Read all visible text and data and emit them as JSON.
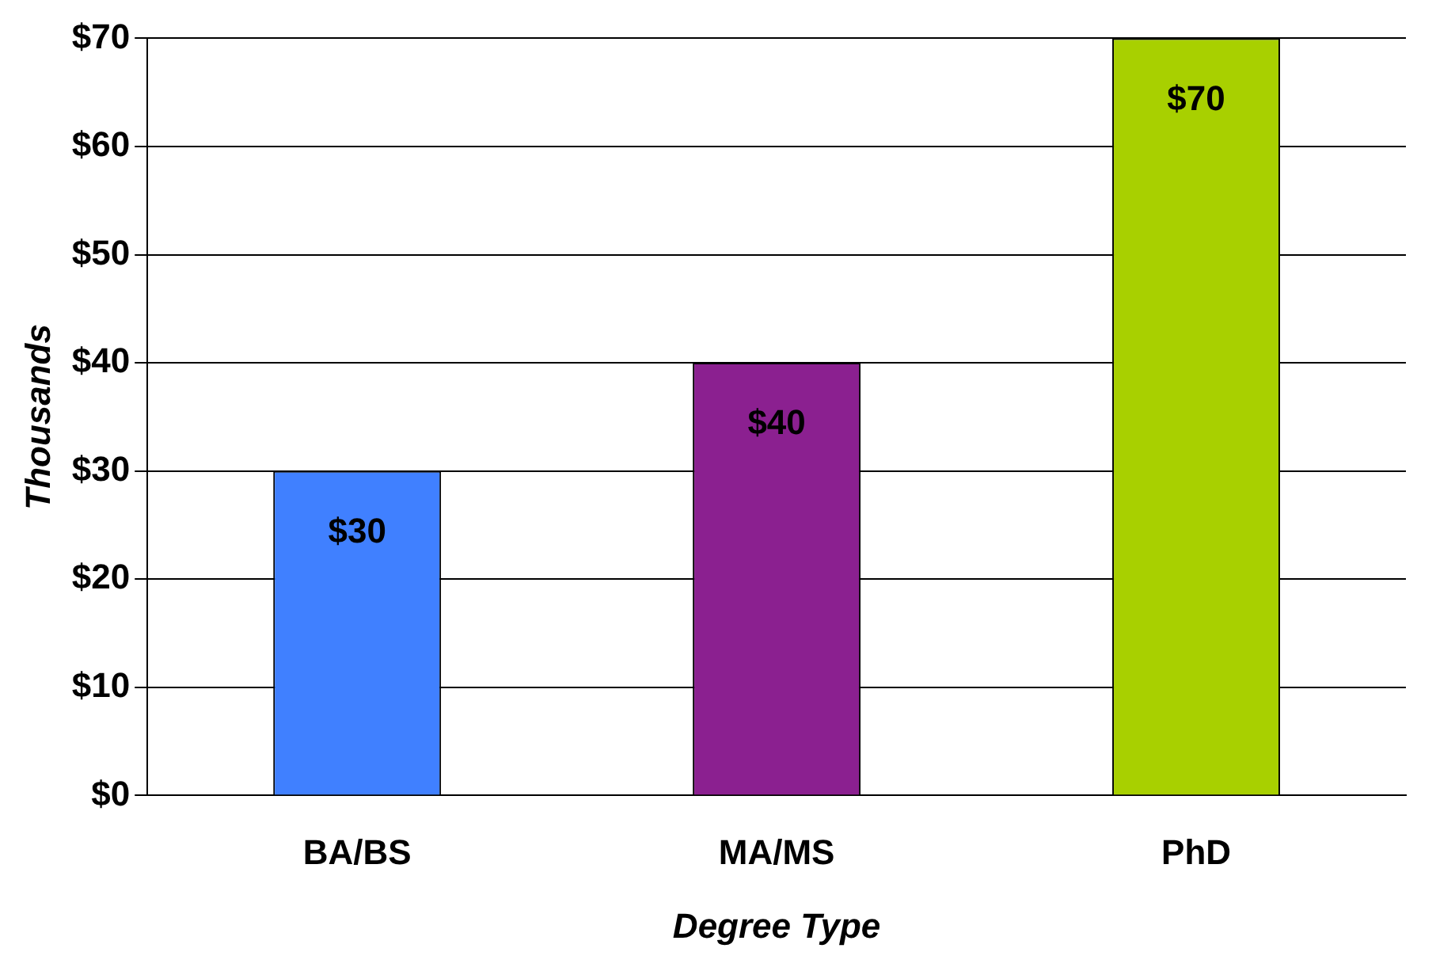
{
  "chart_data": {
    "type": "bar",
    "xlabel": "Degree Type",
    "ylabel": "Thousands",
    "categories": [
      "BA/BS",
      "MA/MS",
      "PhD"
    ],
    "values": [
      30,
      40,
      70
    ],
    "colors": [
      "#4080ff",
      "#8b2090",
      "#a8d000"
    ],
    "value_labels": [
      "$30",
      "$40",
      "$70"
    ],
    "ylim": [
      0,
      70
    ],
    "yticks": [
      {
        "value": 0,
        "label": "$0"
      },
      {
        "value": 10,
        "label": "$10"
      },
      {
        "value": 20,
        "label": "$20"
      },
      {
        "value": 30,
        "label": "$30"
      },
      {
        "value": 40,
        "label": "$40"
      },
      {
        "value": 50,
        "label": "$50"
      },
      {
        "value": 60,
        "label": "$60"
      },
      {
        "value": 70,
        "label": "$70"
      }
    ],
    "grid": "y",
    "legend": false
  }
}
